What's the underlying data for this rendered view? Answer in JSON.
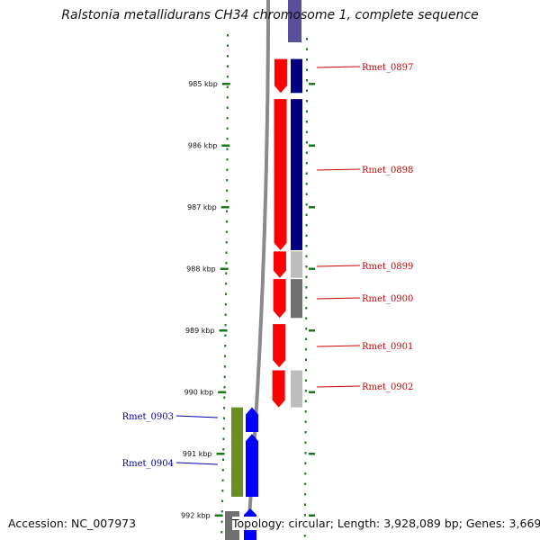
{
  "title": "Ralstonia metallidurans CH34 chromosome 1, complete sequence",
  "footer": {
    "accession": "Accession: NC_007973",
    "stats": "Topology: circular; Length: 3,928,089 bp; Genes: 3,669"
  },
  "scale": {
    "unit": "kbp",
    "ticks": [
      {
        "label": "985 kbp",
        "kbp": 985
      },
      {
        "label": "986 kbp",
        "kbp": 986
      },
      {
        "label": "987 kbp",
        "kbp": 987
      },
      {
        "label": "988 kbp",
        "kbp": 988
      },
      {
        "label": "989 kbp",
        "kbp": 989
      },
      {
        "label": "990 kbp",
        "kbp": 990
      },
      {
        "label": "991 kbp",
        "kbp": 991
      },
      {
        "label": "992 kbp",
        "kbp": 992
      }
    ]
  },
  "genes": [
    {
      "name": "Rmet_0897",
      "start_kbp": 984.6,
      "end_kbp": 985.15,
      "strand": "reverse",
      "label_color": "#cc0000"
    },
    {
      "name": "Rmet_0898",
      "start_kbp": 985.25,
      "end_kbp": 987.7,
      "strand": "reverse",
      "label_color": "#cc0000"
    },
    {
      "name": "Rmet_0899",
      "start_kbp": 987.72,
      "end_kbp": 988.15,
      "strand": "reverse",
      "label_color": "#cc0000"
    },
    {
      "name": "Rmet_0900",
      "start_kbp": 988.17,
      "end_kbp": 988.8,
      "strand": "reverse",
      "label_color": "#cc0000"
    },
    {
      "name": "Rmet_0901",
      "start_kbp": 988.9,
      "end_kbp": 989.6,
      "strand": "reverse",
      "label_color": "#cc0000"
    },
    {
      "name": "Rmet_0902",
      "start_kbp": 989.65,
      "end_kbp": 990.25,
      "strand": "reverse",
      "label_color": "#cc0000"
    },
    {
      "name": "Rmet_0903",
      "start_kbp": 990.25,
      "end_kbp": 990.65,
      "strand": "forward",
      "label_color": "#0000aa"
    },
    {
      "name": "Rmet_0904",
      "start_kbp": 990.68,
      "end_kbp": 991.7,
      "strand": "forward",
      "label_color": "#0000aa"
    }
  ],
  "colors": {
    "reverse_cds": "#ff0000",
    "forward_cds": "#0000ff",
    "backbone": "#8a8a8a",
    "tick": "#1a7a1a",
    "gc_dots": "#1a7a1a",
    "cog_navy": "#000080",
    "cog_grey_light": "#bdbdbd",
    "cog_grey_dark": "#707070",
    "cog_olive": "#6b8e23",
    "cog_purple": "#5a4f9a"
  }
}
